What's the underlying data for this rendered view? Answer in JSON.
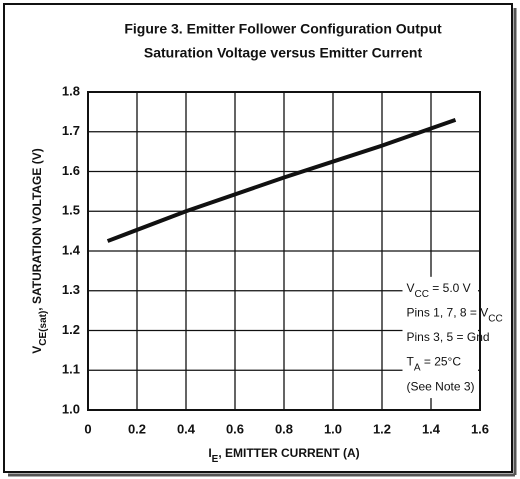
{
  "chart_data": {
    "type": "line",
    "title": [
      "Figure 3. Emitter Follower Configuration Output",
      "Saturation Voltage versus Emitter Current"
    ],
    "x_label": [
      {
        "t": "I"
      },
      {
        "sub": "E"
      },
      {
        "t": ", EMITTER CURRENT (A)"
      }
    ],
    "y_label": [
      {
        "t": "V"
      },
      {
        "sub": "CE(sat)"
      },
      {
        "t": ", SATURATION VOLTAGE (V)"
      }
    ],
    "x": [
      0.08,
      0.4,
      0.8,
      1.0,
      1.2,
      1.5
    ],
    "series": [
      {
        "color": "#111111",
        "values": [
          1.425,
          1.5,
          1.585,
          1.625,
          1.665,
          1.73
        ]
      }
    ],
    "xlim": [
      0,
      1.6
    ],
    "ylim": [
      1.0,
      1.8
    ],
    "xticks": [
      0,
      0.2,
      0.4,
      0.6,
      0.8,
      {
        "value": 1.0,
        "label": "1.0"
      },
      1.2,
      1.4,
      1.6
    ],
    "yticks": [
      {
        "value": 1.0,
        "label": "1.0"
      },
      1.1,
      1.2,
      1.3,
      1.4,
      1.5,
      1.6,
      1.7,
      1.8
    ],
    "grid": true,
    "annotations": [
      [
        {
          "t": "V"
        },
        {
          "sub": "CC"
        },
        {
          "t": " = 5.0 V"
        }
      ],
      [
        {
          "t": "Pins 1, 7, 8 = V"
        },
        {
          "sub": "CC"
        }
      ],
      [
        {
          "t": "Pins 3, 5 = Gnd"
        }
      ],
      [
        {
          "t": "T"
        },
        {
          "sub": "A"
        },
        {
          "t": " = 25°C"
        }
      ],
      [
        {
          "t": "(See Note 3)"
        }
      ]
    ]
  }
}
